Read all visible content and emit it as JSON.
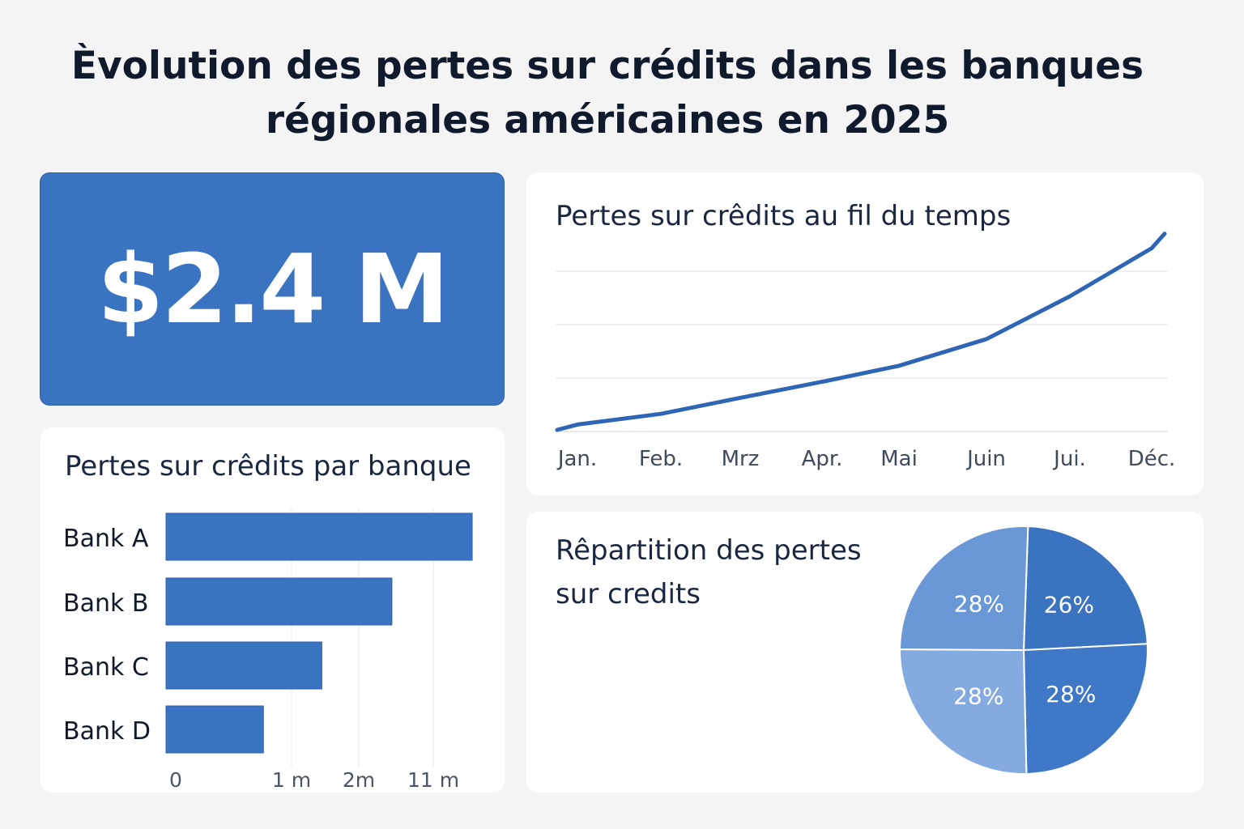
{
  "title": "Èvolution des pertes sur crédits dans les banques régionales américaines en 2025",
  "kpi": {
    "value": "$2.4 M"
  },
  "colors": {
    "primary": "#3a73c0",
    "line": "#2f65b5",
    "pie": [
      "#3a73bf",
      "#3e78c6",
      "#84aadf",
      "#6a98d6"
    ]
  },
  "chart_data": [
    {
      "type": "line",
      "title": "Pertes sur crêdits au fil du temps",
      "categories": [
        "Jan.",
        "Feb.",
        "Mrz",
        "Apr.",
        "Mai",
        "Juin",
        "Jui.",
        "Déc."
      ],
      "values": [
        0.1,
        0.3,
        0.6,
        0.9,
        1.2,
        1.7,
        2.5,
        3.4
      ],
      "grid": true
    },
    {
      "type": "bar",
      "orientation": "horizontal",
      "title": "Pertes sur crêdits par banque",
      "categories": [
        "Bank A",
        "Bank B",
        "Bank C",
        "Bank D"
      ],
      "values": [
        15.7,
        6.0,
        1.45,
        0.77
      ],
      "xticks": [
        0,
        1,
        2,
        11
      ],
      "xtick_labels": [
        "0",
        "1 m",
        "2m",
        "11 m"
      ]
    },
    {
      "type": "pie",
      "title": "Rêpartition des pertes",
      "title_line2": "sur credits",
      "values": [
        26,
        28,
        28,
        28
      ],
      "labels": [
        "26%",
        "28%",
        "28%",
        "28%"
      ]
    }
  ]
}
